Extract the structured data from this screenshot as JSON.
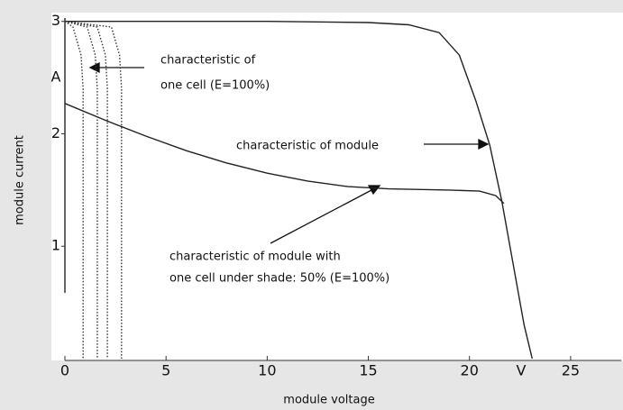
{
  "chart_data": {
    "type": "line",
    "x_label": "module voltage",
    "y_label": "module current",
    "x_unit": "V",
    "y_unit": "A",
    "xlim": [
      0,
      27.5
    ],
    "ylim": [
      0,
      3.03
    ],
    "xticks": [
      0,
      5,
      10,
      15,
      20,
      25
    ],
    "yticks": [
      1,
      2,
      3
    ],
    "annotations": [
      {
        "lines": [
          "characteristic of",
          "one cell (E=100%)"
        ]
      },
      {
        "lines": [
          "characteristic of module"
        ]
      },
      {
        "lines": [
          "characteristic of module with",
          "one cell under shade: 50% (E=100%)"
        ]
      }
    ],
    "series": [
      {
        "color": "#222222",
        "style": "solid",
        "x": [
          0,
          10,
          15,
          17,
          18.5,
          19.5,
          20.3,
          21,
          21.6,
          22.2,
          22.7,
          23.1
        ],
        "values": [
          3,
          3,
          2.99,
          2.97,
          2.9,
          2.7,
          2.3,
          1.9,
          1.4,
          0.8,
          0.3,
          0
        ]
      },
      {
        "color": "#222222",
        "style": "solid",
        "x": [
          0,
          2,
          4,
          6,
          8,
          10,
          12,
          14,
          16,
          19,
          20.5,
          21.3,
          21.7
        ],
        "values": [
          2.27,
          2.12,
          1.98,
          1.85,
          1.74,
          1.65,
          1.58,
          1.53,
          1.51,
          1.5,
          1.49,
          1.45,
          1.38
        ]
      },
      {
        "color": "#333333",
        "style": "dotted",
        "x": [
          0,
          0.4,
          0.8,
          0.9,
          0.9
        ],
        "values": [
          3,
          2.95,
          2.7,
          2.4,
          0
        ]
      },
      {
        "color": "#333333",
        "style": "dotted",
        "x": [
          0,
          1.1,
          1.5,
          1.6,
          1.6
        ],
        "values": [
          3,
          2.95,
          2.7,
          2.4,
          0
        ]
      },
      {
        "color": "#333333",
        "style": "dotted",
        "x": [
          0,
          1.6,
          2.0,
          2.1,
          2.1
        ],
        "values": [
          3,
          2.95,
          2.7,
          2.4,
          0
        ]
      },
      {
        "color": "#333333",
        "style": "dotted",
        "x": [
          0,
          2.3,
          2.7,
          2.8,
          2.8
        ],
        "values": [
          3,
          2.95,
          2.7,
          2.4,
          0
        ]
      }
    ]
  }
}
